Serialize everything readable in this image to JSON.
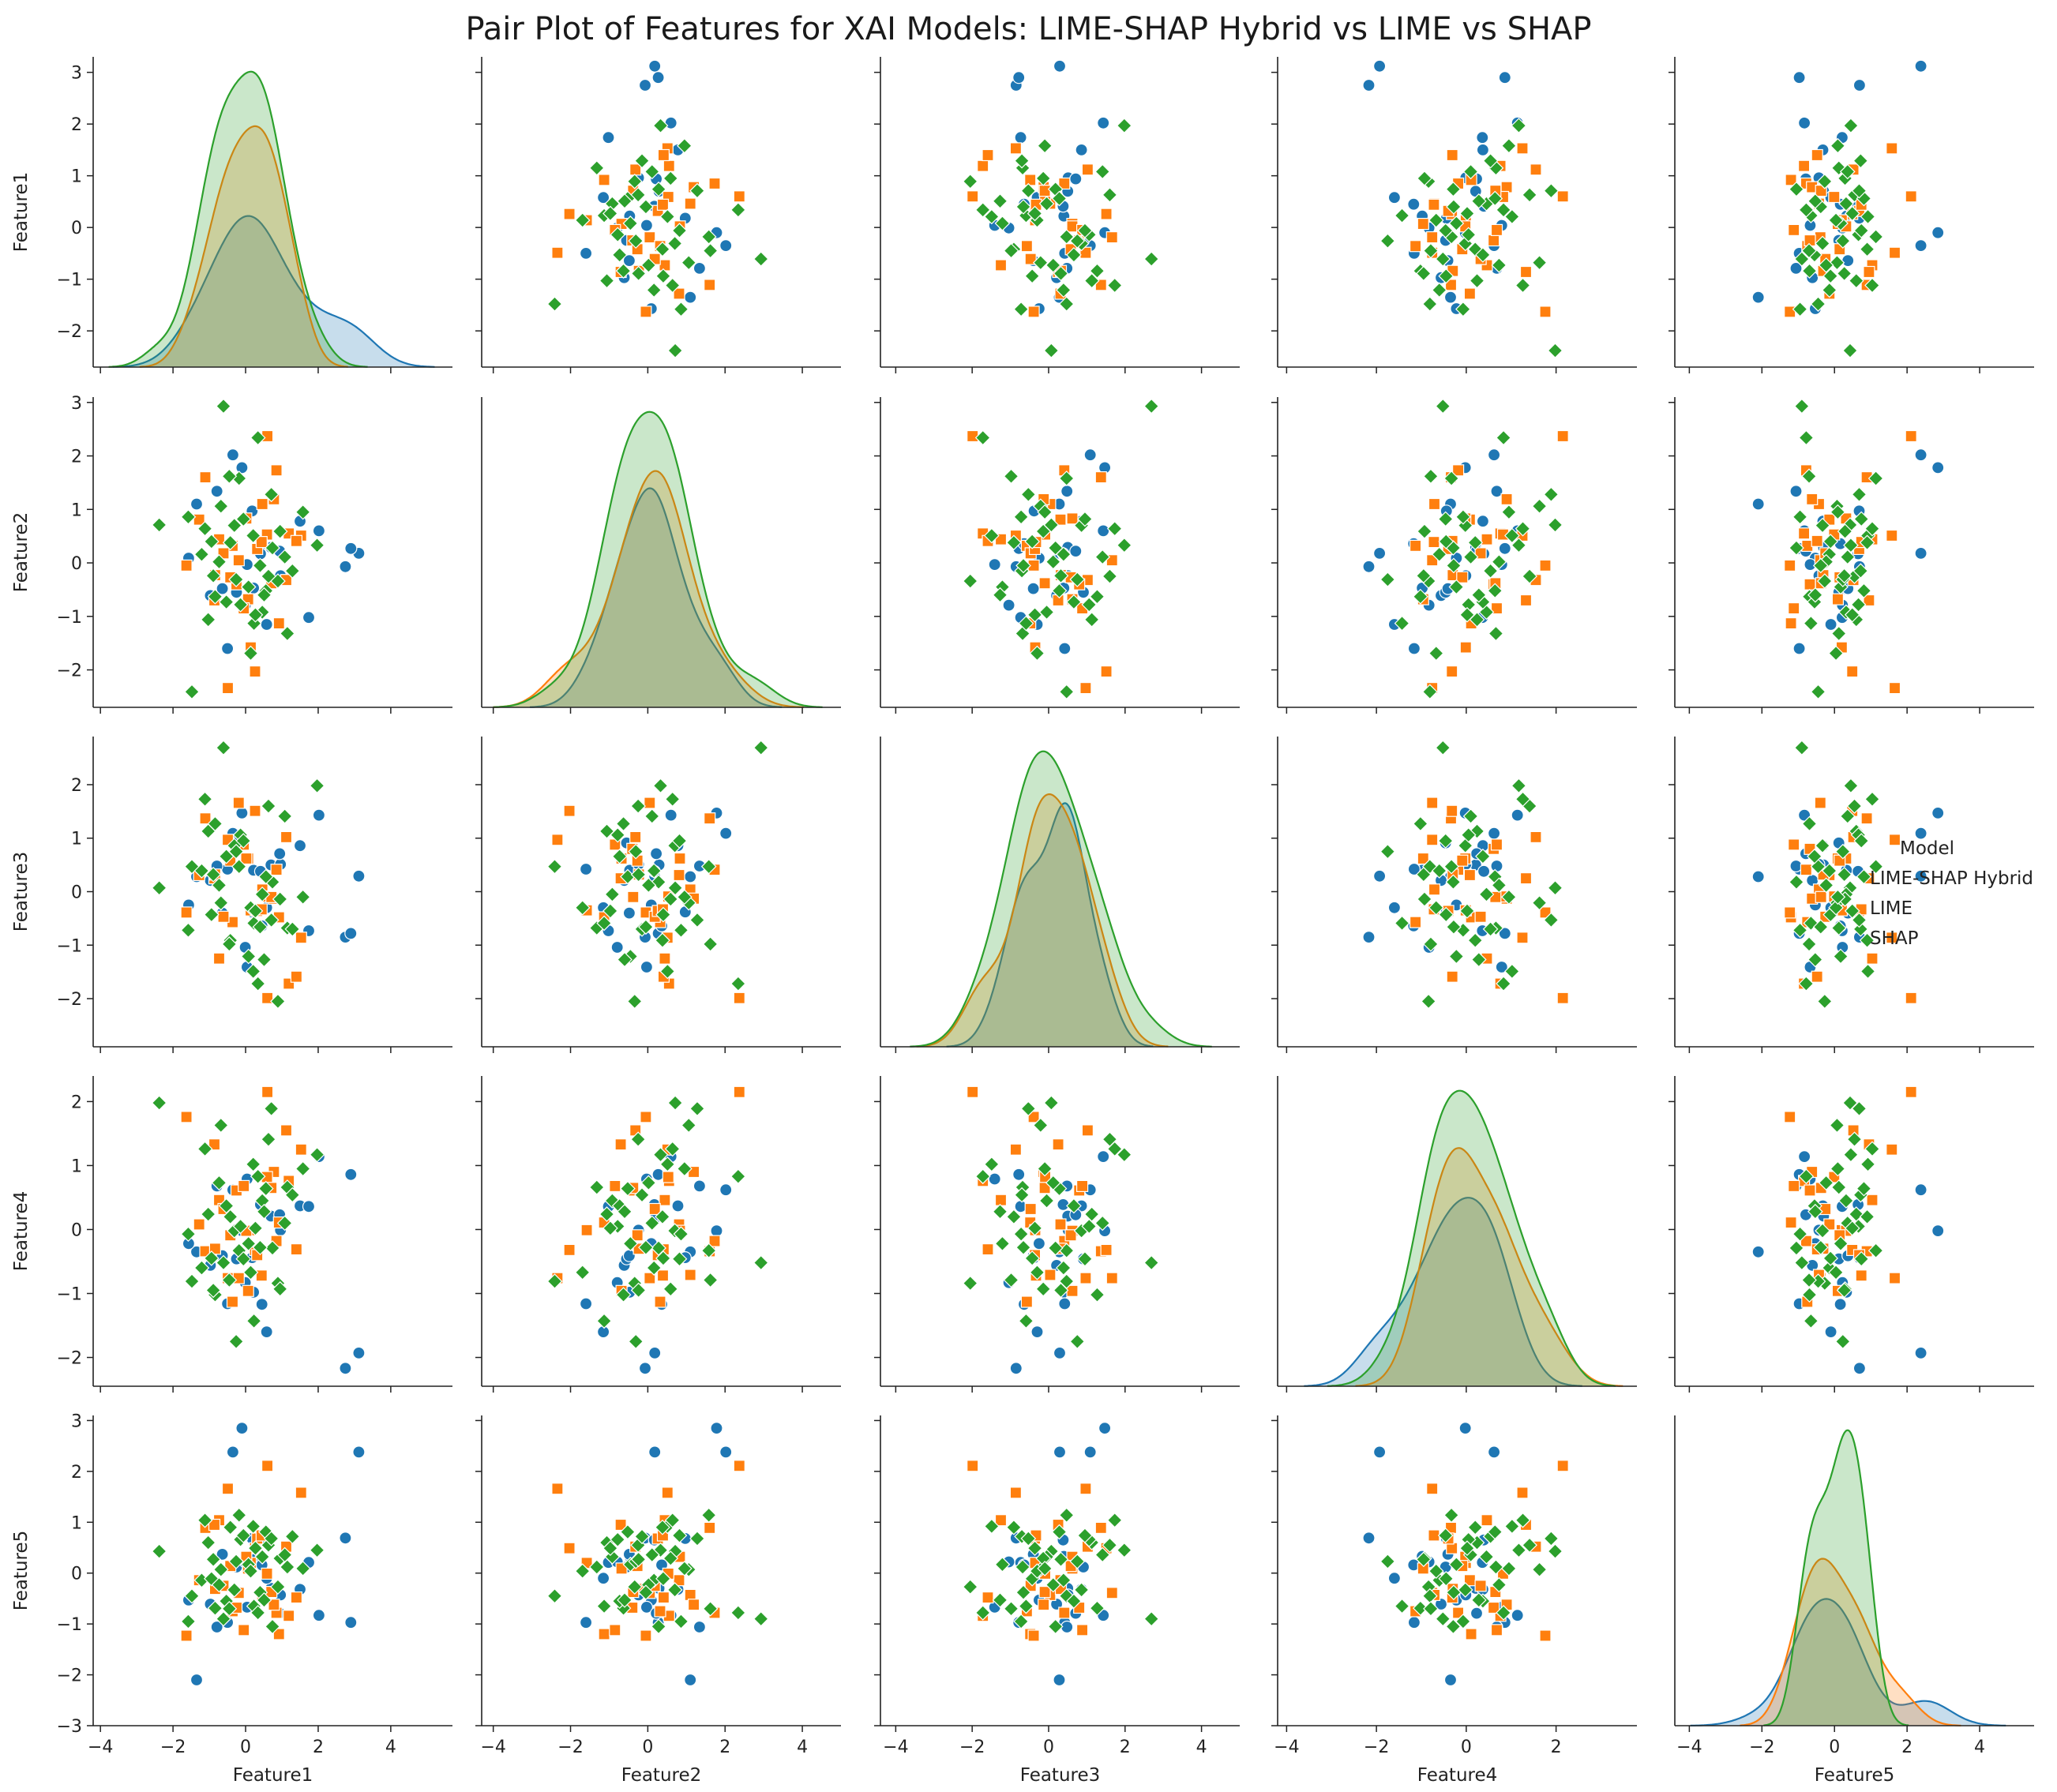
{
  "chart_data": {
    "type": "scatter",
    "kind": "pairplot",
    "title": "Pair Plot of Features for XAI Models: LIME-SHAP Hybrid vs LIME vs SHAP",
    "features": [
      "Feature1",
      "Feature2",
      "Feature3",
      "Feature4",
      "Feature5"
    ],
    "legend": {
      "title": "Model",
      "placement": "right of row 3",
      "entries": [
        "LIME-SHAP Hybrid",
        "LIME",
        "SHAP"
      ]
    },
    "series": [
      {
        "name": "LIME-SHAP Hybrid",
        "color": "#1f77b4",
        "marker": "circle",
        "points": [
          [
            3.12,
            0.18,
            0.29,
            -1.93,
            2.38
          ],
          [
            2.75,
            -0.07,
            -0.85,
            -2.17,
            0.69
          ],
          [
            2.9,
            0.27,
            -0.78,
            0.86,
            -0.97
          ],
          [
            -1.35,
            1.1,
            0.28,
            -0.35,
            -2.1
          ],
          [
            -0.35,
            2.02,
            1.09,
            0.62,
            2.38
          ],
          [
            -0.1,
            1.78,
            1.47,
            -0.02,
            2.85
          ],
          [
            0.7,
            0.29,
            0.5,
            0.21,
            -0.3
          ],
          [
            1.5,
            0.78,
            0.86,
            0.37,
            -0.32
          ],
          [
            2.02,
            0.6,
            1.43,
            1.14,
            -0.83
          ],
          [
            -1.57,
            0.09,
            -0.25,
            -0.22,
            -0.53
          ],
          [
            0.58,
            -1.15,
            -0.3,
            -1.6,
            -0.1
          ],
          [
            -0.97,
            -0.61,
            0.21,
            -0.56,
            -0.61
          ],
          [
            0.22,
            -0.47,
            0.4,
            -0.98,
            0.33
          ],
          [
            -0.5,
            -1.6,
            0.42,
            -1.16,
            -0.97
          ],
          [
            0.04,
            -0.03,
            -1.41,
            0.79,
            -0.67
          ],
          [
            -0.25,
            -0.55,
            0.91,
            -0.46,
            0.12
          ],
          [
            0.96,
            -0.24,
            0.51,
            -0.01,
            -0.43
          ],
          [
            1.74,
            -1.02,
            -0.73,
            0.36,
            0.21
          ],
          [
            -0.79,
            1.34,
            0.48,
            0.68,
            -1.06
          ],
          [
            0.45,
            0.36,
            -0.64,
            -1.17,
            0.16
          ],
          [
            -0.01,
            -0.79,
            -1.04,
            -0.83,
            0.22
          ],
          [
            0.41,
            0.17,
            0.38,
            0.39,
            0.65
          ],
          [
            0.18,
            0.97,
            -0.38,
            -0.44,
            0.68
          ],
          [
            0.94,
            0.22,
            0.71,
            0.23,
            -0.79
          ],
          [
            -0.64,
            -0.48,
            -0.4,
            -0.41,
            0.37
          ]
        ]
      },
      {
        "name": "LIME",
        "color": "#ff7f0e",
        "marker": "square",
        "points": [
          [
            0.6,
            2.37,
            -1.99,
            2.15,
            2.11
          ],
          [
            1.53,
            0.51,
            -0.86,
            1.25,
            1.58
          ],
          [
            -1.11,
            1.6,
            1.37,
            -0.34,
            0.89
          ],
          [
            0.85,
            1.73,
            0.41,
            -0.18,
            -0.78
          ],
          [
            1.12,
            -0.32,
            1.02,
            1.55,
            0.52
          ],
          [
            -0.49,
            -2.34,
            0.97,
            -0.76,
            1.66
          ],
          [
            0.92,
            -1.13,
            -0.48,
            0.11,
            -1.2
          ],
          [
            -0.73,
            0.44,
            -1.25,
            0.46,
            1.04
          ],
          [
            -1.63,
            -0.05,
            -0.39,
            1.76,
            -1.23
          ],
          [
            1.19,
            0.55,
            -1.72,
            0.76,
            -0.84
          ],
          [
            -0.19,
            0.05,
            1.66,
            -0.76,
            -0.39
          ],
          [
            -0.86,
            -0.7,
            0.25,
            1.33,
            0.95
          ],
          [
            0.46,
            1.1,
            0.04,
            -0.71,
            -0.43
          ],
          [
            0.26,
            -2.03,
            1.51,
            -0.32,
            0.49
          ],
          [
            -0.36,
            0.32,
            -0.57,
            -1.13,
            -0.75
          ],
          [
            0.14,
            -1.58,
            -0.35,
            -0.01,
            0.2
          ],
          [
            0.78,
            1.19,
            -0.13,
            0.9,
            -0.62
          ],
          [
            -1.28,
            0.81,
            0.31,
            0.08,
            -0.14
          ],
          [
            0.07,
            -0.68,
            0.62,
            -0.96,
            0.09
          ],
          [
            -0.61,
            0.18,
            -0.47,
            0.32,
            -0.25
          ],
          [
            0.32,
            0.26,
            -0.36,
            -0.4,
            0.68
          ],
          [
            -0.25,
            -0.4,
            0.8,
            0.61,
            -0.68
          ],
          [
            0.59,
            0.53,
            -0.09,
            0.82,
            -0.01
          ],
          [
            0.02,
            0.83,
            0.62,
            -0.02,
            0.32
          ],
          [
            -0.84,
            -0.23,
            0.32,
            -0.3,
            -0.31
          ],
          [
            1.4,
            0.41,
            -1.59,
            -0.31,
            -0.48
          ],
          [
            -0.05,
            -0.85,
            0.88,
            0.68,
            -1.12
          ],
          [
            0.44,
            0.39,
            -0.33,
            -0.72,
            0.74
          ],
          [
            -0.42,
            -0.27,
            0.58,
            -0.09,
            0.14
          ],
          [
            0.71,
            -0.38,
            -0.1,
            0.65,
            -0.37
          ]
        ]
      },
      {
        "name": "SHAP",
        "color": "#2ca02c",
        "marker": "diamond",
        "points": [
          [
            -2.38,
            0.71,
            0.07,
            1.98,
            0.43
          ],
          [
            -0.61,
            2.93,
            2.69,
            -0.52,
            -0.9
          ],
          [
            0.89,
            -0.34,
            -2.05,
            -0.84,
            -0.27
          ],
          [
            0.21,
            0.51,
            -1.49,
            1.02,
            0.92
          ],
          [
            -1.03,
            -1.06,
            1.13,
            0.24,
            0.6
          ],
          [
            1.15,
            -1.32,
            -0.68,
            0.66,
            0.12
          ],
          [
            -0.18,
            1.58,
            0.47,
            -0.33,
            1.14
          ],
          [
            -0.84,
            -0.63,
            1.27,
            -1.02,
            -0.69
          ],
          [
            0.63,
            -0.25,
            1.6,
            1.41,
            0.55
          ],
          [
            -1.48,
            -2.41,
            0.47,
            -0.81,
            -0.45
          ],
          [
            1.97,
            0.33,
            1.98,
            1.17,
            0.45
          ],
          [
            0.23,
            -1.13,
            -0.59,
            -1.43,
            -0.65
          ],
          [
            -0.42,
            0.38,
            -0.91,
            0.2,
            0.9
          ],
          [
            0.74,
            0.28,
            0.18,
            -0.29,
            -1.05
          ],
          [
            -0.68,
            1.06,
            -0.21,
            1.63,
            0.07
          ],
          [
            0.46,
            -0.92,
            -0.05,
            0.45,
            0.32
          ],
          [
            -0.31,
            0.7,
            0.86,
            -0.02,
            -0.33
          ],
          [
            1.29,
            -0.15,
            -0.7,
            0.54,
            0.72
          ],
          [
            -1.21,
            0.16,
            0.39,
            -0.6,
            -0.14
          ],
          [
            0.08,
            -0.45,
            -1.21,
            -0.22,
            0.17
          ],
          [
            -0.53,
            -0.73,
            0.66,
            0.37,
            -0.55
          ],
          [
            0.95,
            0.59,
            -0.14,
            -0.93,
            0.29
          ],
          [
            0.34,
            2.34,
            -1.72,
            0.83,
            -0.78
          ],
          [
            -0.14,
            -0.78,
            1.06,
            0.05,
            0.66
          ],
          [
            -0.94,
            0.4,
            -0.43,
            -0.45,
            -0.11
          ],
          [
            0.56,
            -0.52,
            0.28,
            0.64,
            0.81
          ],
          [
            -1.58,
            0.86,
            -0.72,
            -0.07,
            -0.95
          ],
          [
            1.08,
            0.11,
            1.41,
            0.1,
            0.36
          ],
          [
            0.14,
            -1.69,
            -0.3,
            -0.67,
            0.04
          ],
          [
            -0.73,
            0.02,
            0.12,
            0.73,
            -0.23
          ],
          [
            0.71,
            1.28,
            -0.53,
            1.89,
            0.68
          ],
          [
            -0.26,
            -0.31,
            0.75,
            -1.75,
            0.23
          ],
          [
            0.4,
            -0.05,
            -0.66,
            -0.28,
            -0.38
          ],
          [
            -1.12,
            0.64,
            1.73,
            1.26,
            1.04
          ],
          [
            0.27,
            -0.97,
            -0.36,
            0.02,
            0.49
          ],
          [
            -0.45,
            1.62,
            -0.98,
            -0.79,
            -0.7
          ],
          [
            1.58,
            0.95,
            -0.1,
            0.95,
            0.09
          ],
          [
            -0.06,
            0.82,
            0.95,
            -0.46,
            0.74
          ],
          [
            0.51,
            -0.6,
            -1.27,
            0.28,
            -0.53
          ],
          [
            -0.89,
            -0.24,
            0.32,
            -0.95,
            0.27
          ]
        ]
      }
    ],
    "diagonal": "kde",
    "axis_ranges": {
      "Feature1": [
        -4.2,
        5.7
      ],
      "Feature2": [
        -4.3,
        5.0
      ],
      "Feature3": [
        -4.4,
        5.0
      ],
      "Feature4": [
        -4.2,
        3.8
      ],
      "Feature5": [
        -4.4,
        5.5
      ]
    },
    "y_ranges": {
      "Feature1": [
        -2.7,
        3.3
      ],
      "Feature2": [
        -2.7,
        3.1
      ],
      "Feature3": [
        -2.9,
        2.9
      ],
      "Feature4": [
        -2.45,
        2.4
      ],
      "Feature5": [
        -3.0,
        3.1
      ]
    },
    "ticks": {
      "Feature1": [
        -4,
        -2,
        0,
        2,
        4
      ],
      "Feature2": [
        -4,
        -2,
        0,
        2,
        4
      ],
      "Feature3": [
        -4,
        -2,
        0,
        2,
        4
      ],
      "Feature4": [
        -4,
        -2,
        0,
        2
      ],
      "Feature5": [
        -4,
        -2,
        0,
        2,
        4
      ]
    },
    "y_ticks": {
      "Feature1": [
        -2,
        -1,
        0,
        1,
        2,
        3
      ],
      "Feature2": [
        -2,
        -1,
        0,
        1,
        2,
        3
      ],
      "Feature3": [
        -2,
        -1,
        0,
        1,
        2
      ],
      "Feature4": [
        -2,
        -1,
        0,
        1,
        2
      ],
      "Feature5": [
        -3,
        -2,
        -1,
        0,
        1,
        2,
        3
      ]
    }
  }
}
